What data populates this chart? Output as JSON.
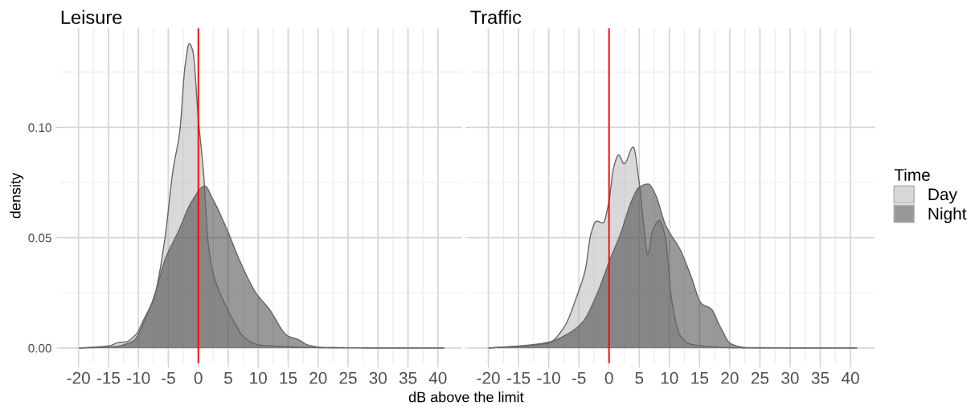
{
  "chart_data": [
    {
      "type": "area",
      "title": "Leisure",
      "xlabel": "dB above the limit",
      "ylabel": "density",
      "grid": true,
      "tick_labels": "xy",
      "xlim": [
        -23.05,
        44.05
      ],
      "ylim": [
        -0.0069,
        0.1449
      ],
      "xticks": [
        -20,
        -15,
        -10,
        -5,
        0,
        5,
        10,
        15,
        20,
        25,
        30,
        35,
        40
      ],
      "yticks": [
        {
          "value": 0,
          "label": "0.00"
        },
        {
          "value": 0.05,
          "label": "0.05"
        },
        {
          "value": 0.1,
          "label": "0.10"
        }
      ],
      "ref_lines": [
        {
          "axis": "x",
          "value": 0,
          "color": "#ff0000"
        }
      ],
      "series": [
        {
          "color": "#d9d9d9",
          "x": [
            -19.8,
            -14.9,
            -13.1,
            -12.3,
            -10.4,
            -9.1,
            -7.3,
            -5.6,
            -4.2,
            -3.1,
            -2.2,
            -1.5,
            -0.9,
            0,
            0.9,
            1.6,
            2.4,
            4.2,
            6.0,
            7.8,
            10.4,
            14.4,
            18.9,
            41
          ],
          "values": [
            0,
            0.001,
            0.0026,
            0.0027,
            0.0062,
            0.0129,
            0.0238,
            0.049,
            0.081,
            0.098,
            0.128,
            0.138,
            0.1345,
            0.104,
            0.0786,
            0.049,
            0.0348,
            0.0214,
            0.0117,
            0.0044,
            0.0013,
            0.0007,
            0.0002,
            0
          ]
        },
        {
          "color": "#999999",
          "x": [
            -19.8,
            -14.4,
            -10.9,
            -8.7,
            -7.3,
            -5.6,
            -3.3,
            -1.1,
            1.1,
            2.4,
            4.7,
            6.9,
            9.6,
            11.8,
            14.9,
            16.7,
            18.4,
            21.1,
            41
          ],
          "values": [
            0,
            0.0005,
            0.0032,
            0.0141,
            0.0238,
            0.0397,
            0.053,
            0.0664,
            0.0734,
            0.0676,
            0.0543,
            0.0397,
            0.0251,
            0.0178,
            0.0056,
            0.0038,
            0.0013,
            0.0002,
            0
          ]
        }
      ]
    },
    {
      "type": "area",
      "title": "Traffic",
      "legend": "right",
      "legend_title": "Time",
      "grid": true,
      "tick_labels": "x",
      "xlim": [
        -23.05,
        44.05
      ],
      "ylim": [
        -0.0069,
        0.1449
      ],
      "xticks": [
        -20,
        -15,
        -10,
        -5,
        0,
        5,
        10,
        15,
        20,
        25,
        30,
        35,
        40
      ],
      "yticks": [
        {
          "value": 0,
          "label": null
        },
        {
          "value": 0.05,
          "label": null
        },
        {
          "value": 0.1,
          "label": null
        }
      ],
      "ref_lines": [
        {
          "axis": "x",
          "value": 0,
          "color": "#ff0000"
        }
      ],
      "series": [
        {
          "name": "Day",
          "color": "#d9d9d9",
          "x": [
            -19.9,
            -10.1,
            -7.5,
            -5.3,
            -3.9,
            -3.0,
            -2.1,
            -1.0,
            -0.1,
            0.8,
            1.6,
            2.5,
            4.0,
            5.0,
            5.8,
            6.4,
            7.2,
            8.3,
            9.3,
            10.4,
            11.8,
            13.6,
            16.5,
            20.9,
            41
          ],
          "values": [
            0,
            0.0022,
            0.0092,
            0.0238,
            0.036,
            0.0518,
            0.0575,
            0.0567,
            0.0652,
            0.0822,
            0.0875,
            0.0835,
            0.0911,
            0.0749,
            0.0543,
            0.0423,
            0.053,
            0.0577,
            0.0506,
            0.0214,
            0.0056,
            0.0017,
            0.0007,
            0.0001,
            0
          ]
        },
        {
          "name": "Night",
          "color": "#999999",
          "x": [
            -19.9,
            -14.6,
            -10.1,
            -6.6,
            -4.4,
            -2.1,
            0.1,
            1.9,
            3.7,
            5.0,
            6.5,
            7.6,
            9.4,
            11.8,
            13.6,
            15.3,
            16.9,
            18.5,
            20.2,
            22.9,
            41
          ],
          "values": [
            0,
            0.001,
            0.0026,
            0.0068,
            0.0117,
            0.0238,
            0.0397,
            0.0518,
            0.0664,
            0.0729,
            0.0743,
            0.0701,
            0.0555,
            0.0445,
            0.0324,
            0.0202,
            0.0178,
            0.0092,
            0.0019,
            0.0002,
            0
          ]
        }
      ]
    }
  ]
}
